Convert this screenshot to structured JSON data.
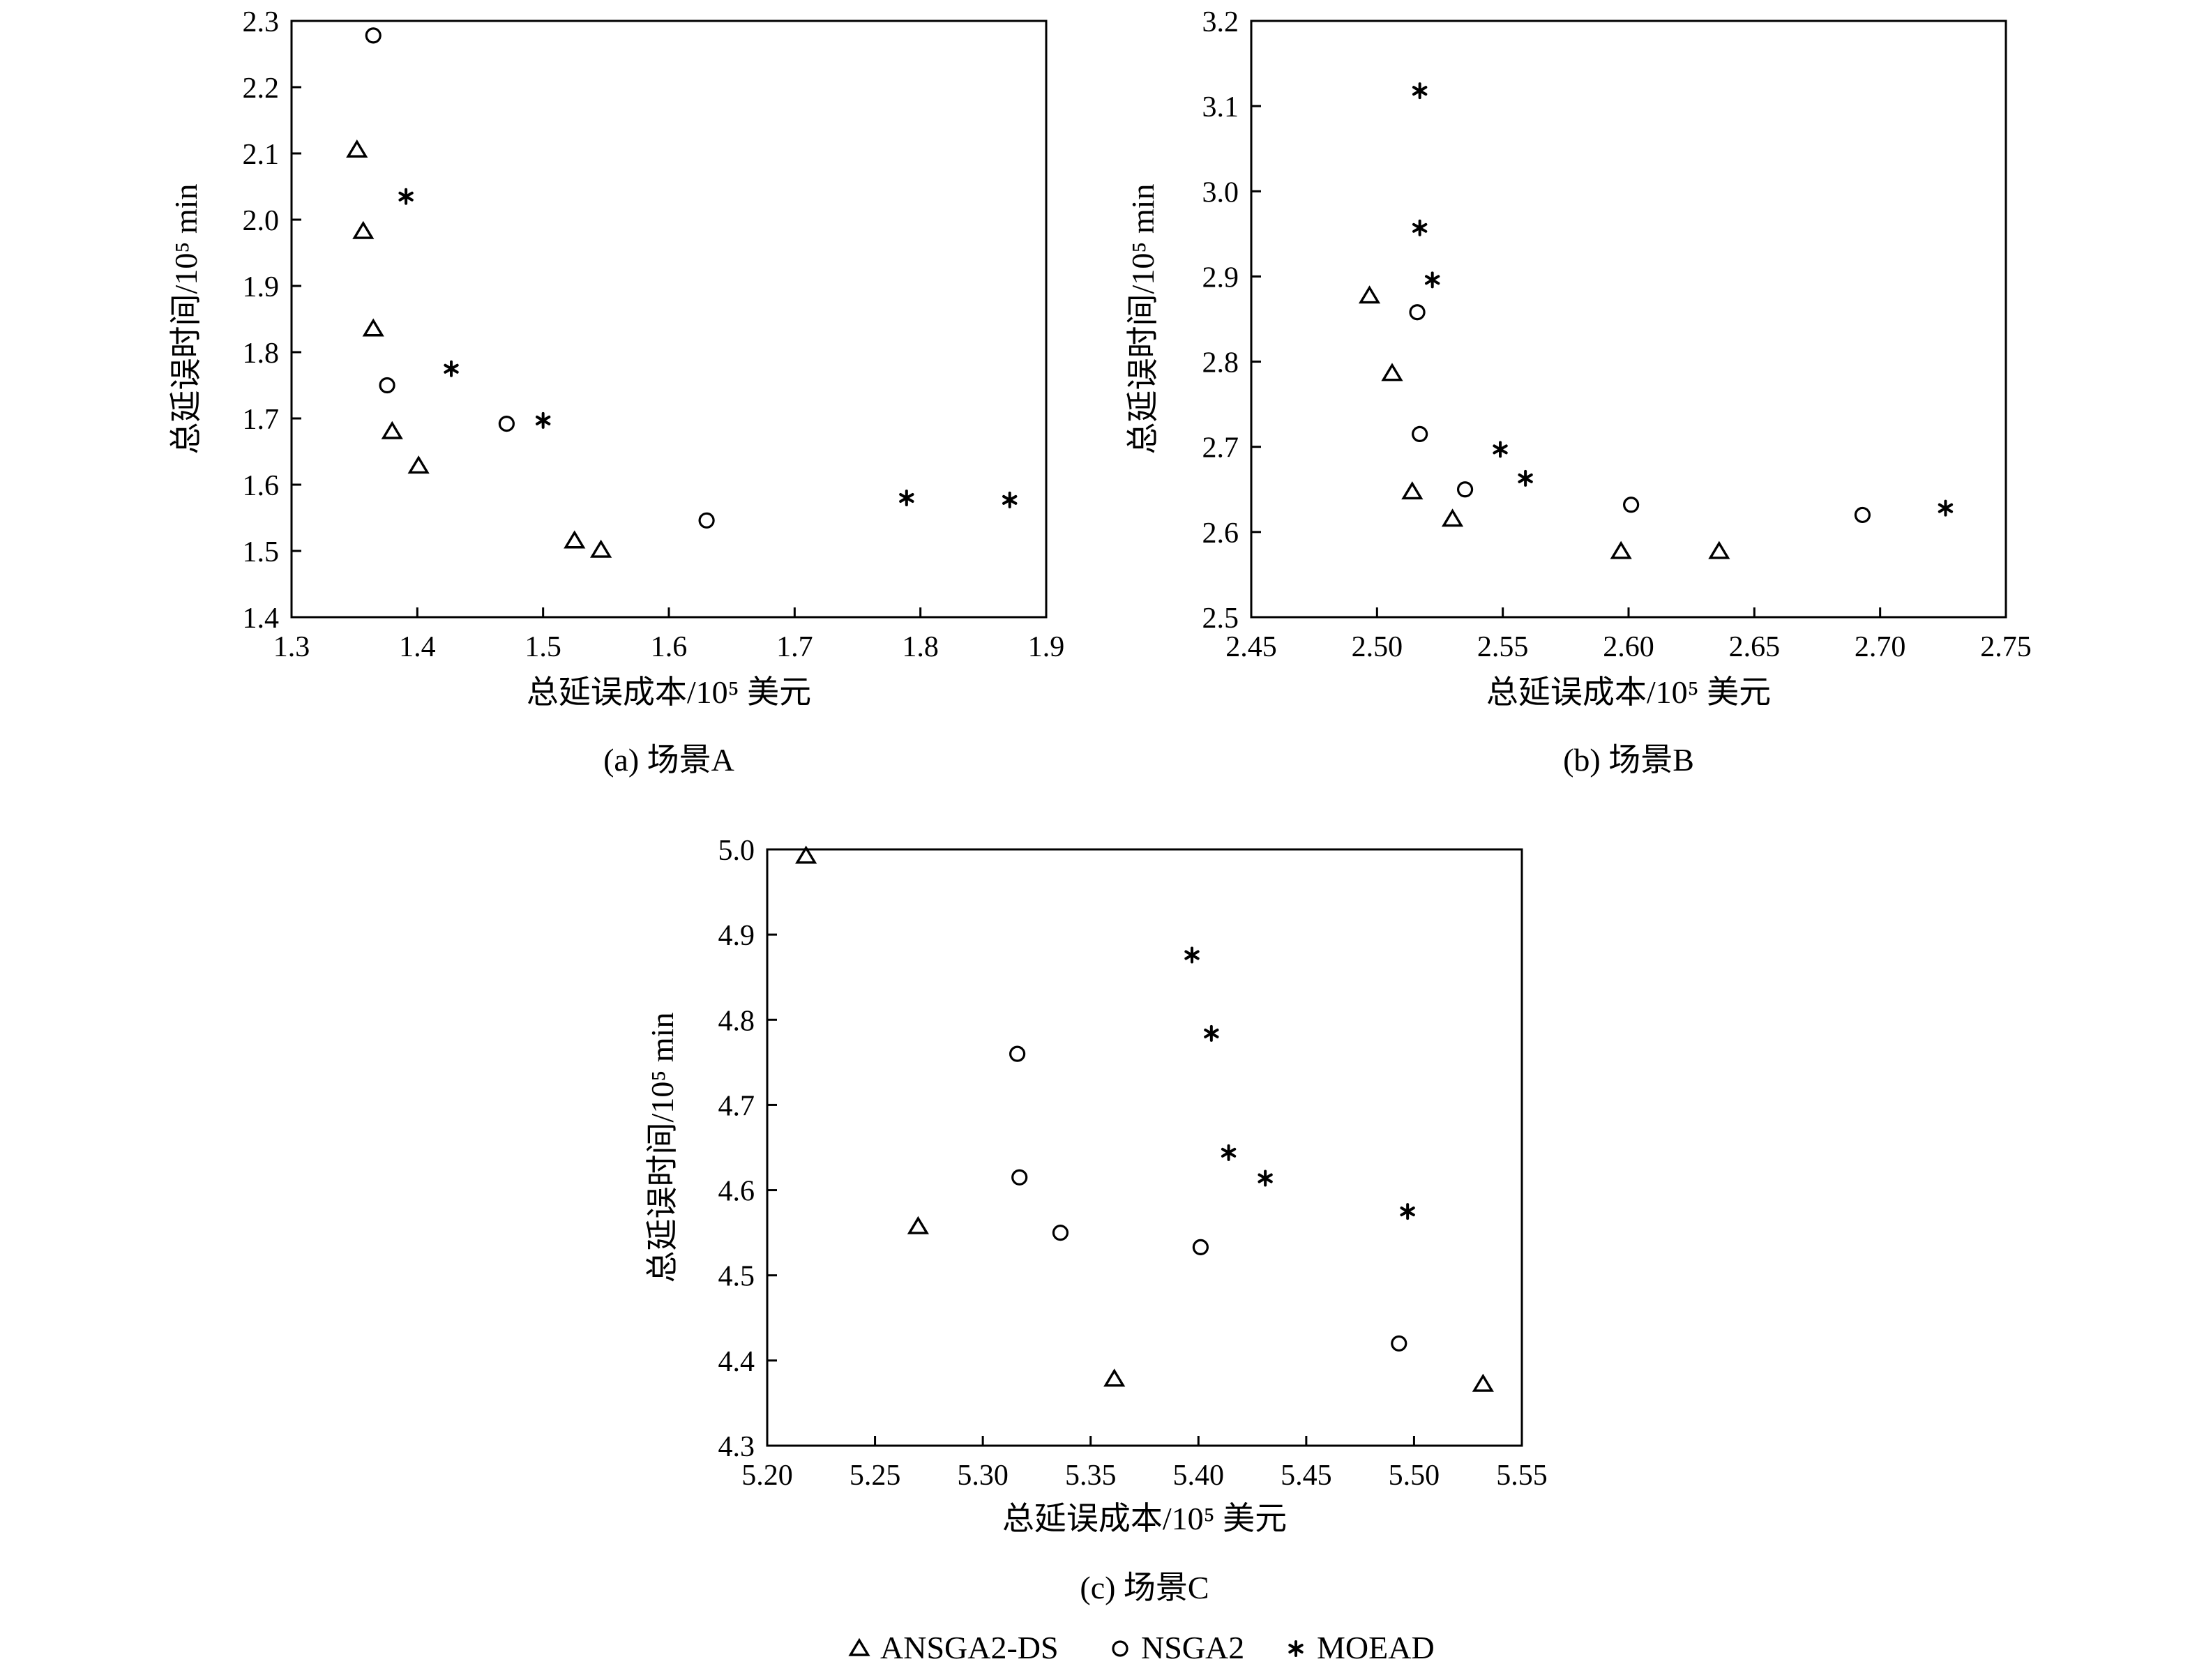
{
  "legend": [
    {
      "name": "ANSGA2-DS",
      "marker": "triangle"
    },
    {
      "name": "NSGA2",
      "marker": "circle"
    },
    {
      "name": "MOEAD",
      "marker": "asterisk"
    }
  ],
  "chart_data": [
    {
      "type": "scatter",
      "caption": "(a) 场景A",
      "xlabel": "总延误成本/10⁵ 美元",
      "ylabel": "总延误时间/10⁵ min",
      "xlim": [
        1.3,
        1.9
      ],
      "ylim": [
        1.4,
        2.3
      ],
      "xticks": [
        "1.3",
        "1.4",
        "1.5",
        "1.6",
        "1.7",
        "1.8",
        "1.9"
      ],
      "yticks": [
        "1.4",
        "1.5",
        "1.6",
        "1.7",
        "1.8",
        "1.9",
        "2.0",
        "2.1",
        "2.2",
        "2.3"
      ],
      "grid": false,
      "series": [
        {
          "name": "ANSGA2-DS",
          "marker": "triangle",
          "x": [
            1.352,
            1.357,
            1.365,
            1.38,
            1.401,
            1.525,
            1.546
          ],
          "y": [
            2.105,
            1.982,
            1.835,
            1.68,
            1.628,
            1.515,
            1.501
          ]
        },
        {
          "name": "NSGA2",
          "marker": "circle",
          "x": [
            1.365,
            1.376,
            1.471,
            1.63
          ],
          "y": [
            2.278,
            1.75,
            1.692,
            1.546
          ]
        },
        {
          "name": "MOEAD",
          "marker": "asterisk",
          "x": [
            1.391,
            1.427,
            1.5,
            1.789,
            1.871
          ],
          "y": [
            2.035,
            1.775,
            1.697,
            1.58,
            1.577
          ]
        }
      ]
    },
    {
      "type": "scatter",
      "caption": "(b) 场景B",
      "xlabel": "总延误成本/10⁵ 美元",
      "ylabel": "总延误时间/10⁵ min",
      "xlim": [
        2.45,
        2.75
      ],
      "ylim": [
        2.5,
        3.2
      ],
      "xticks": [
        "2.45",
        "2.50",
        "2.55",
        "2.60",
        "2.65",
        "2.70",
        "2.75"
      ],
      "yticks": [
        "2.5",
        "2.6",
        "2.7",
        "2.8",
        "2.9",
        "3.0",
        "3.1",
        "3.2"
      ],
      "grid": false,
      "series": [
        {
          "name": "ANSGA2-DS",
          "marker": "triangle",
          "x": [
            2.497,
            2.506,
            2.514,
            2.53,
            2.597,
            2.636
          ],
          "y": [
            2.877,
            2.786,
            2.647,
            2.615,
            2.577,
            2.577
          ]
        },
        {
          "name": "NSGA2",
          "marker": "circle",
          "x": [
            2.516,
            2.517,
            2.535,
            2.601,
            2.693
          ],
          "y": [
            2.858,
            2.715,
            2.65,
            2.632,
            2.62
          ]
        },
        {
          "name": "MOEAD",
          "marker": "asterisk",
          "x": [
            2.517,
            2.517,
            2.522,
            2.549,
            2.559,
            2.726
          ],
          "y": [
            3.118,
            2.957,
            2.896,
            2.697,
            2.663,
            2.628
          ]
        }
      ]
    },
    {
      "type": "scatter",
      "caption": "(c) 场景C",
      "xlabel": "总延误成本/10⁵ 美元",
      "ylabel": "总延误时间/10⁵ min",
      "xlim": [
        5.2,
        5.55
      ],
      "ylim": [
        4.3,
        5.0
      ],
      "xticks": [
        "5.20",
        "5.25",
        "5.30",
        "5.35",
        "5.40",
        "5.45",
        "5.50",
        "5.55"
      ],
      "yticks": [
        "4.3",
        "4.4",
        "4.5",
        "4.6",
        "4.7",
        "4.8",
        "4.9",
        "5.0"
      ],
      "grid": false,
      "series": [
        {
          "name": "ANSGA2-DS",
          "marker": "triangle",
          "x": [
            5.218,
            5.27,
            5.361,
            5.532
          ],
          "y": [
            4.992,
            4.557,
            4.378,
            4.372
          ]
        },
        {
          "name": "NSGA2",
          "marker": "circle",
          "x": [
            5.316,
            5.317,
            5.336,
            5.401,
            5.493
          ],
          "y": [
            4.76,
            4.615,
            4.55,
            4.533,
            4.42
          ]
        },
        {
          "name": "MOEAD",
          "marker": "asterisk",
          "x": [
            5.397,
            5.406,
            5.414,
            5.431,
            5.497
          ],
          "y": [
            4.876,
            4.784,
            4.644,
            4.614,
            4.575
          ]
        }
      ]
    }
  ]
}
